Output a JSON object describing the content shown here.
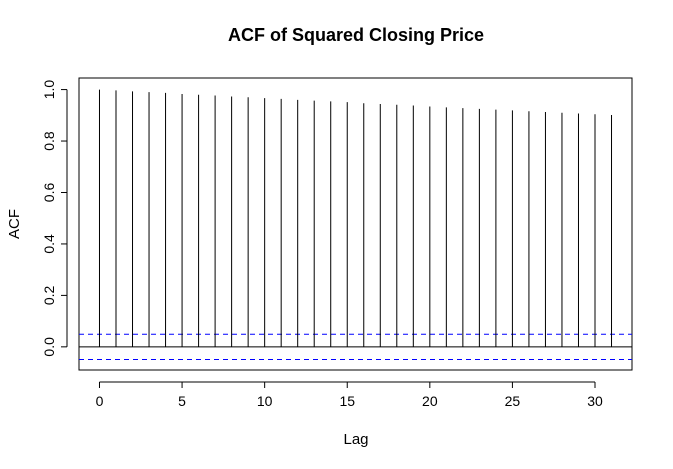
{
  "chart_data": {
    "type": "bar",
    "title": "ACF of Squared Closing Price",
    "xlabel": "Lag",
    "ylabel": "ACF",
    "x": [
      0,
      1,
      2,
      3,
      4,
      5,
      6,
      7,
      8,
      9,
      10,
      11,
      12,
      13,
      14,
      15,
      16,
      17,
      18,
      19,
      20,
      21,
      22,
      23,
      24,
      25,
      26,
      27,
      28,
      29,
      30,
      31
    ],
    "values": [
      1.0,
      0.997,
      0.993,
      0.99,
      0.987,
      0.983,
      0.98,
      0.977,
      0.973,
      0.97,
      0.967,
      0.964,
      0.96,
      0.957,
      0.954,
      0.951,
      0.947,
      0.944,
      0.941,
      0.938,
      0.934,
      0.931,
      0.928,
      0.925,
      0.922,
      0.919,
      0.916,
      0.913,
      0.91,
      0.907,
      0.904,
      0.901
    ],
    "confidence_bound": 0.049,
    "xlim": [
      -1.24,
      32.24
    ],
    "ylim": [
      -0.09,
      1.045
    ],
    "x_ticks": [
      "0",
      "5",
      "10",
      "15",
      "20",
      "25",
      "30"
    ],
    "y_ticks": [
      "0.0",
      "0.2",
      "0.4",
      "0.6",
      "0.8",
      "1.0"
    ],
    "grid": false,
    "colors": {
      "bars": "#000000",
      "confidence": "#0000ff",
      "zero_line": "#000000"
    }
  }
}
